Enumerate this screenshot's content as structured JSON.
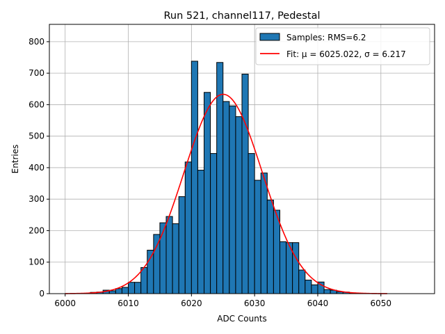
{
  "chart_data": {
    "type": "bar",
    "title": "Run 521, channel117, Pedestal",
    "xlabel": "ADC Counts",
    "ylabel": "Entries",
    "xlim": [
      5997.5,
      6058.5
    ],
    "ylim": [
      0,
      855
    ],
    "xticks": [
      6000,
      6010,
      6020,
      6030,
      6040,
      6050
    ],
    "yticks": [
      0,
      100,
      200,
      300,
      400,
      500,
      600,
      700,
      800
    ],
    "grid": true,
    "legend_position": "top-right",
    "bin_width": 1,
    "series": [
      {
        "name": "Samples: RMS=6.2",
        "kind": "histogram",
        "color": "#1f77b4",
        "edgecolor": "#000000",
        "bin_starts": [
          6004,
          6005,
          6006,
          6007,
          6008,
          6009,
          6010,
          6011,
          6012,
          6013,
          6014,
          6015,
          6016,
          6017,
          6018,
          6019,
          6020,
          6021,
          6022,
          6023,
          6024,
          6025,
          6026,
          6027,
          6028,
          6029,
          6030,
          6031,
          6032,
          6033,
          6034,
          6035,
          6036,
          6037,
          6038,
          6039,
          6040,
          6041,
          6042,
          6043,
          6044,
          6045,
          6046
        ],
        "values": [
          4,
          5,
          11,
          9,
          16,
          20,
          36,
          36,
          83,
          138,
          188,
          225,
          245,
          222,
          308,
          418,
          738,
          392,
          639,
          445,
          734,
          610,
          596,
          562,
          697,
          445,
          360,
          383,
          297,
          265,
          165,
          162,
          162,
          75,
          43,
          28,
          37,
          13,
          11,
          6,
          5,
          2,
          1
        ]
      },
      {
        "name": "Fit: μ = 6025.022, σ = 6.217",
        "kind": "gaussian_fit",
        "color": "#ff0000",
        "mu": 6025.022,
        "sigma": 6.217,
        "amplitude": 633,
        "x_range": [
          6000,
          6051
        ]
      }
    ]
  }
}
